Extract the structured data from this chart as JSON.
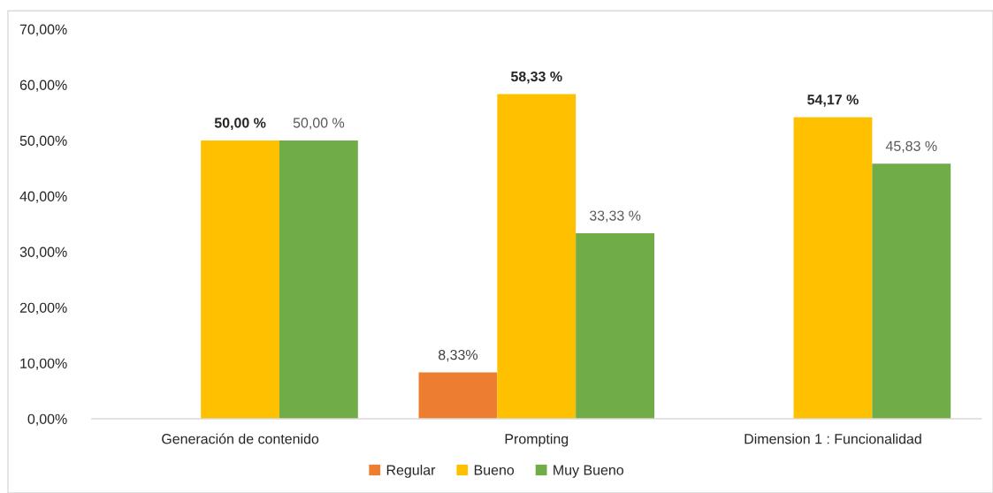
{
  "chart_data": {
    "type": "bar",
    "categories": [
      "Generación de contenido",
      "Prompting",
      "Dimension 1 : Funcionalidad"
    ],
    "series": [
      {
        "name": "Regular",
        "color": "#ed7d31",
        "values": [
          null,
          8.33,
          null
        ],
        "value_labels": [
          null,
          "8,33%",
          null
        ]
      },
      {
        "name": "Bueno",
        "color": "#ffc000",
        "values": [
          50.0,
          58.33,
          54.17
        ],
        "value_labels": [
          "50,00 %",
          "58,33 %",
          "54,17 %"
        ]
      },
      {
        "name": "Muy Bueno",
        "color": "#70ad47",
        "values": [
          50.0,
          33.33,
          45.83
        ],
        "value_labels": [
          "50,00 %",
          "33,33 %",
          "45,83 %"
        ]
      }
    ],
    "ylim": [
      0,
      70
    ],
    "yticks": [
      {
        "value": 0,
        "label": "0,00%"
      },
      {
        "value": 10,
        "label": "10,00%"
      },
      {
        "value": 20,
        "label": "20,00%"
      },
      {
        "value": 30,
        "label": "30,00%"
      },
      {
        "value": 40,
        "label": "40,00%"
      },
      {
        "value": 50,
        "label": "50,00%"
      },
      {
        "value": 60,
        "label": "60,00%"
      },
      {
        "value": 70,
        "label": "70,00%"
      }
    ],
    "grid": false,
    "legend": "bottom"
  }
}
